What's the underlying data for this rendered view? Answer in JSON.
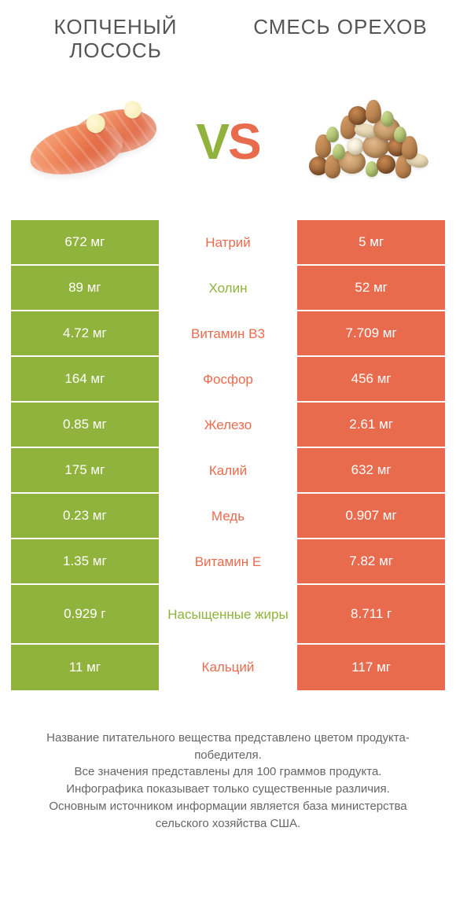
{
  "titles": {
    "left": "КОПЧЕНЫЙ ЛОСОСЬ",
    "right": "СМЕСЬ ОРЕХОВ"
  },
  "vs": {
    "v": "V",
    "s": "S"
  },
  "colors": {
    "left": "#8fb33c",
    "right": "#e96b4e",
    "bg": "#ffffff"
  },
  "rows": [
    {
      "left": "672 мг",
      "label": "Натрий",
      "right": "5 мг",
      "winner": "right"
    },
    {
      "left": "89 мг",
      "label": "Холин",
      "right": "52 мг",
      "winner": "left"
    },
    {
      "left": "4.72 мг",
      "label": "Витамин B3",
      "right": "7.709 мг",
      "winner": "right"
    },
    {
      "left": "164 мг",
      "label": "Фосфор",
      "right": "456 мг",
      "winner": "right"
    },
    {
      "left": "0.85 мг",
      "label": "Железо",
      "right": "2.61 мг",
      "winner": "right"
    },
    {
      "left": "175 мг",
      "label": "Калий",
      "right": "632 мг",
      "winner": "right"
    },
    {
      "left": "0.23 мг",
      "label": "Медь",
      "right": "0.907 мг",
      "winner": "right"
    },
    {
      "left": "1.35 мг",
      "label": "Витамин E",
      "right": "7.82 мг",
      "winner": "right"
    },
    {
      "left": "0.929 г",
      "label": "Насыщенные жиры",
      "right": "8.711 г",
      "winner": "left",
      "tall": true
    },
    {
      "left": "11 мг",
      "label": "Кальций",
      "right": "117 мг",
      "winner": "right"
    }
  ],
  "footnotes": [
    "Название питательного вещества представлено цветом продукта-победителя.",
    "Все значения представлены для 100 граммов продукта.",
    "Инфографика показывает только существенные различия.",
    "Основным источником информации является база министерства сельского хозяйства США."
  ]
}
